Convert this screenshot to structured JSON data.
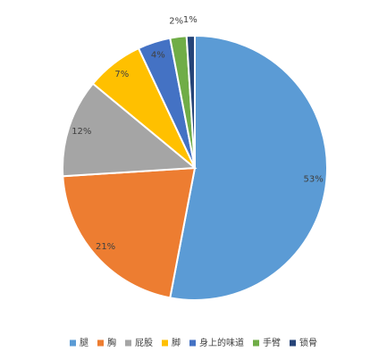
{
  "chart_data": {
    "type": "pie",
    "categories": [
      "腿",
      "胸",
      "屁股",
      "脚",
      "身上的味道",
      "手臂",
      "锁骨"
    ],
    "values": [
      53,
      21,
      12,
      7,
      4,
      2,
      1
    ],
    "value_labels": [
      "53%",
      "21%",
      "12%",
      "7%",
      "4%",
      "2%",
      "1%"
    ],
    "colors": [
      "#5b9bd5",
      "#ed7d31",
      "#a5a5a5",
      "#ffc000",
      "#4472c4",
      "#70ad47",
      "#264478"
    ],
    "legend": "bottom"
  }
}
